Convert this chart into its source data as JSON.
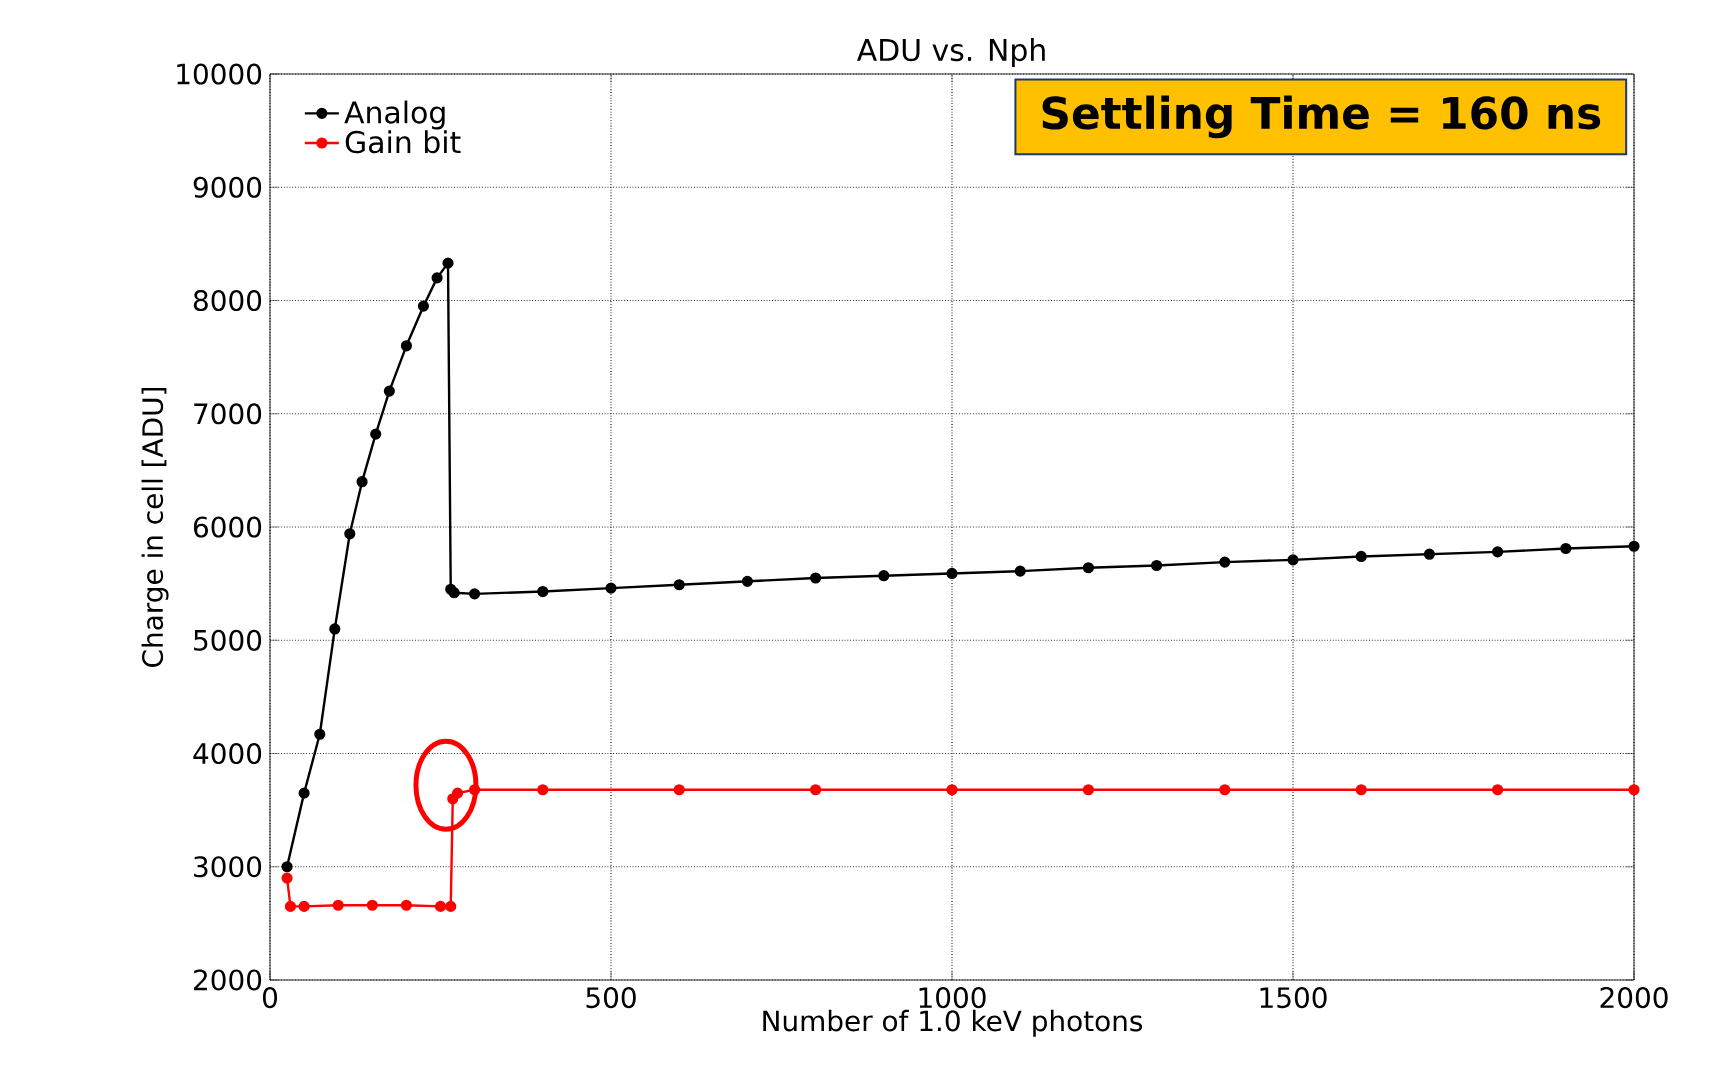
{
  "chart_data": {
    "type": "line",
    "title": "ADU vs. Nph",
    "xlabel": "Number of 1.0 keV photons",
    "ylabel": "Charge in cell [ADU]",
    "annotations": [
      "Settling Time = 160 ns"
    ],
    "xlim": [
      0,
      2000
    ],
    "ylim": [
      2000,
      10000
    ],
    "xticks": [
      0,
      500,
      1000,
      1500,
      2000
    ],
    "yticks": [
      2000,
      3000,
      4000,
      5000,
      6000,
      7000,
      8000,
      9000,
      10000
    ],
    "grid": true,
    "legend": "top left",
    "marker": "circle",
    "line_style": "solid",
    "series": [
      {
        "name": "Analog",
        "color": "#000000",
        "x": [
          25,
          50,
          73,
          95,
          117,
          135,
          155,
          175,
          200,
          225,
          245,
          261,
          265,
          270,
          300,
          400,
          500,
          600,
          700,
          800,
          900,
          1000,
          1100,
          1200,
          1300,
          1400,
          1500,
          1600,
          1700,
          1800,
          1900,
          2000
        ],
        "values": [
          3000,
          3650,
          4170,
          5100,
          5940,
          6400,
          6820,
          7200,
          7600,
          7950,
          8200,
          8330,
          5450,
          5420,
          5410,
          5430,
          5460,
          5490,
          5520,
          5550,
          5570,
          5590,
          5610,
          5640,
          5660,
          5690,
          5710,
          5740,
          5760,
          5780,
          5810,
          5830
        ]
      },
      {
        "name": "Gain bit",
        "color": "#ff0000",
        "x": [
          25,
          30,
          50,
          100,
          150,
          200,
          250,
          265,
          268,
          275,
          300,
          400,
          600,
          800,
          1000,
          1200,
          1400,
          1600,
          1800,
          2000
        ],
        "values": [
          2900,
          2650,
          2650,
          2660,
          2660,
          2660,
          2650,
          2650,
          3600,
          3650,
          3680,
          3680,
          3680,
          3680,
          3680,
          3680,
          3680,
          3680,
          3680,
          3680
        ]
      }
    ]
  }
}
